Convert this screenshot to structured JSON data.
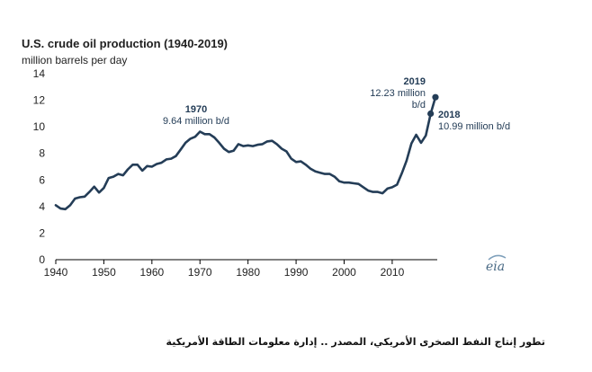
{
  "chart_data": {
    "type": "line",
    "title": "U.S. crude oil production (1940-2019)",
    "subtitle": "million barrels per day",
    "xlabel": "",
    "ylabel": "",
    "xlim": [
      1940,
      2019
    ],
    "ylim": [
      0,
      14
    ],
    "xticks": [
      1940,
      1950,
      1960,
      1970,
      1980,
      1990,
      2000,
      2010
    ],
    "yticks": [
      0,
      2,
      4,
      6,
      8,
      10,
      12,
      14
    ],
    "grid": false,
    "line_color": "#243d57",
    "series": [
      {
        "x": [
          1940,
          1941,
          1942,
          1943,
          1944,
          1945,
          1946,
          1947,
          1948,
          1949,
          1950,
          1951,
          1952,
          1953,
          1954,
          1955,
          1956,
          1957,
          1958,
          1959,
          1960,
          1961,
          1962,
          1963,
          1964,
          1965,
          1966,
          1967,
          1968,
          1969,
          1970,
          1971,
          1972,
          1973,
          1974,
          1975,
          1976,
          1977,
          1978,
          1979,
          1980,
          1981,
          1982,
          1983,
          1984,
          1985,
          1986,
          1987,
          1988,
          1989,
          1990,
          1991,
          1992,
          1993,
          1994,
          1995,
          1996,
          1997,
          1998,
          1999,
          2000,
          2001,
          2002,
          2003,
          2004,
          2005,
          2006,
          2007,
          2008,
          2009,
          2010,
          2011,
          2012,
          2013,
          2014,
          2015,
          2016,
          2017,
          2018,
          2019
        ],
        "values": [
          4.1,
          3.85,
          3.8,
          4.1,
          4.6,
          4.7,
          4.75,
          5.1,
          5.5,
          5.05,
          5.4,
          6.15,
          6.25,
          6.45,
          6.35,
          6.8,
          7.15,
          7.15,
          6.7,
          7.05,
          7.0,
          7.2,
          7.3,
          7.55,
          7.6,
          7.8,
          8.3,
          8.8,
          9.1,
          9.25,
          9.64,
          9.45,
          9.45,
          9.2,
          8.8,
          8.35,
          8.1,
          8.2,
          8.7,
          8.55,
          8.6,
          8.55,
          8.65,
          8.7,
          8.9,
          8.95,
          8.7,
          8.35,
          8.15,
          7.6,
          7.35,
          7.4,
          7.15,
          6.85,
          6.65,
          6.55,
          6.45,
          6.45,
          6.25,
          5.9,
          5.8,
          5.8,
          5.75,
          5.7,
          5.45,
          5.2,
          5.1,
          5.1,
          5.0,
          5.35,
          5.45,
          5.65,
          6.5,
          7.45,
          8.75,
          9.4,
          8.8,
          9.35,
          10.99,
          12.23
        ]
      }
    ],
    "annotations": [
      {
        "year": "1970",
        "x": 1970,
        "y": 9.64,
        "text": "9.64 million b/d"
      },
      {
        "year": "2018",
        "x": 2018,
        "y": 10.99,
        "text": "10.99 million b/d"
      },
      {
        "year": "2019",
        "x": 2019,
        "y": 12.23,
        "text_line1": "12.23 million",
        "text_line2": "b/d"
      }
    ]
  },
  "logo": {
    "text": "eia"
  },
  "caption": "تطور إنتاج النفط الصخرى الأمريكي، المصدر .. إدارة معلومات الطاقة الأمريكية"
}
